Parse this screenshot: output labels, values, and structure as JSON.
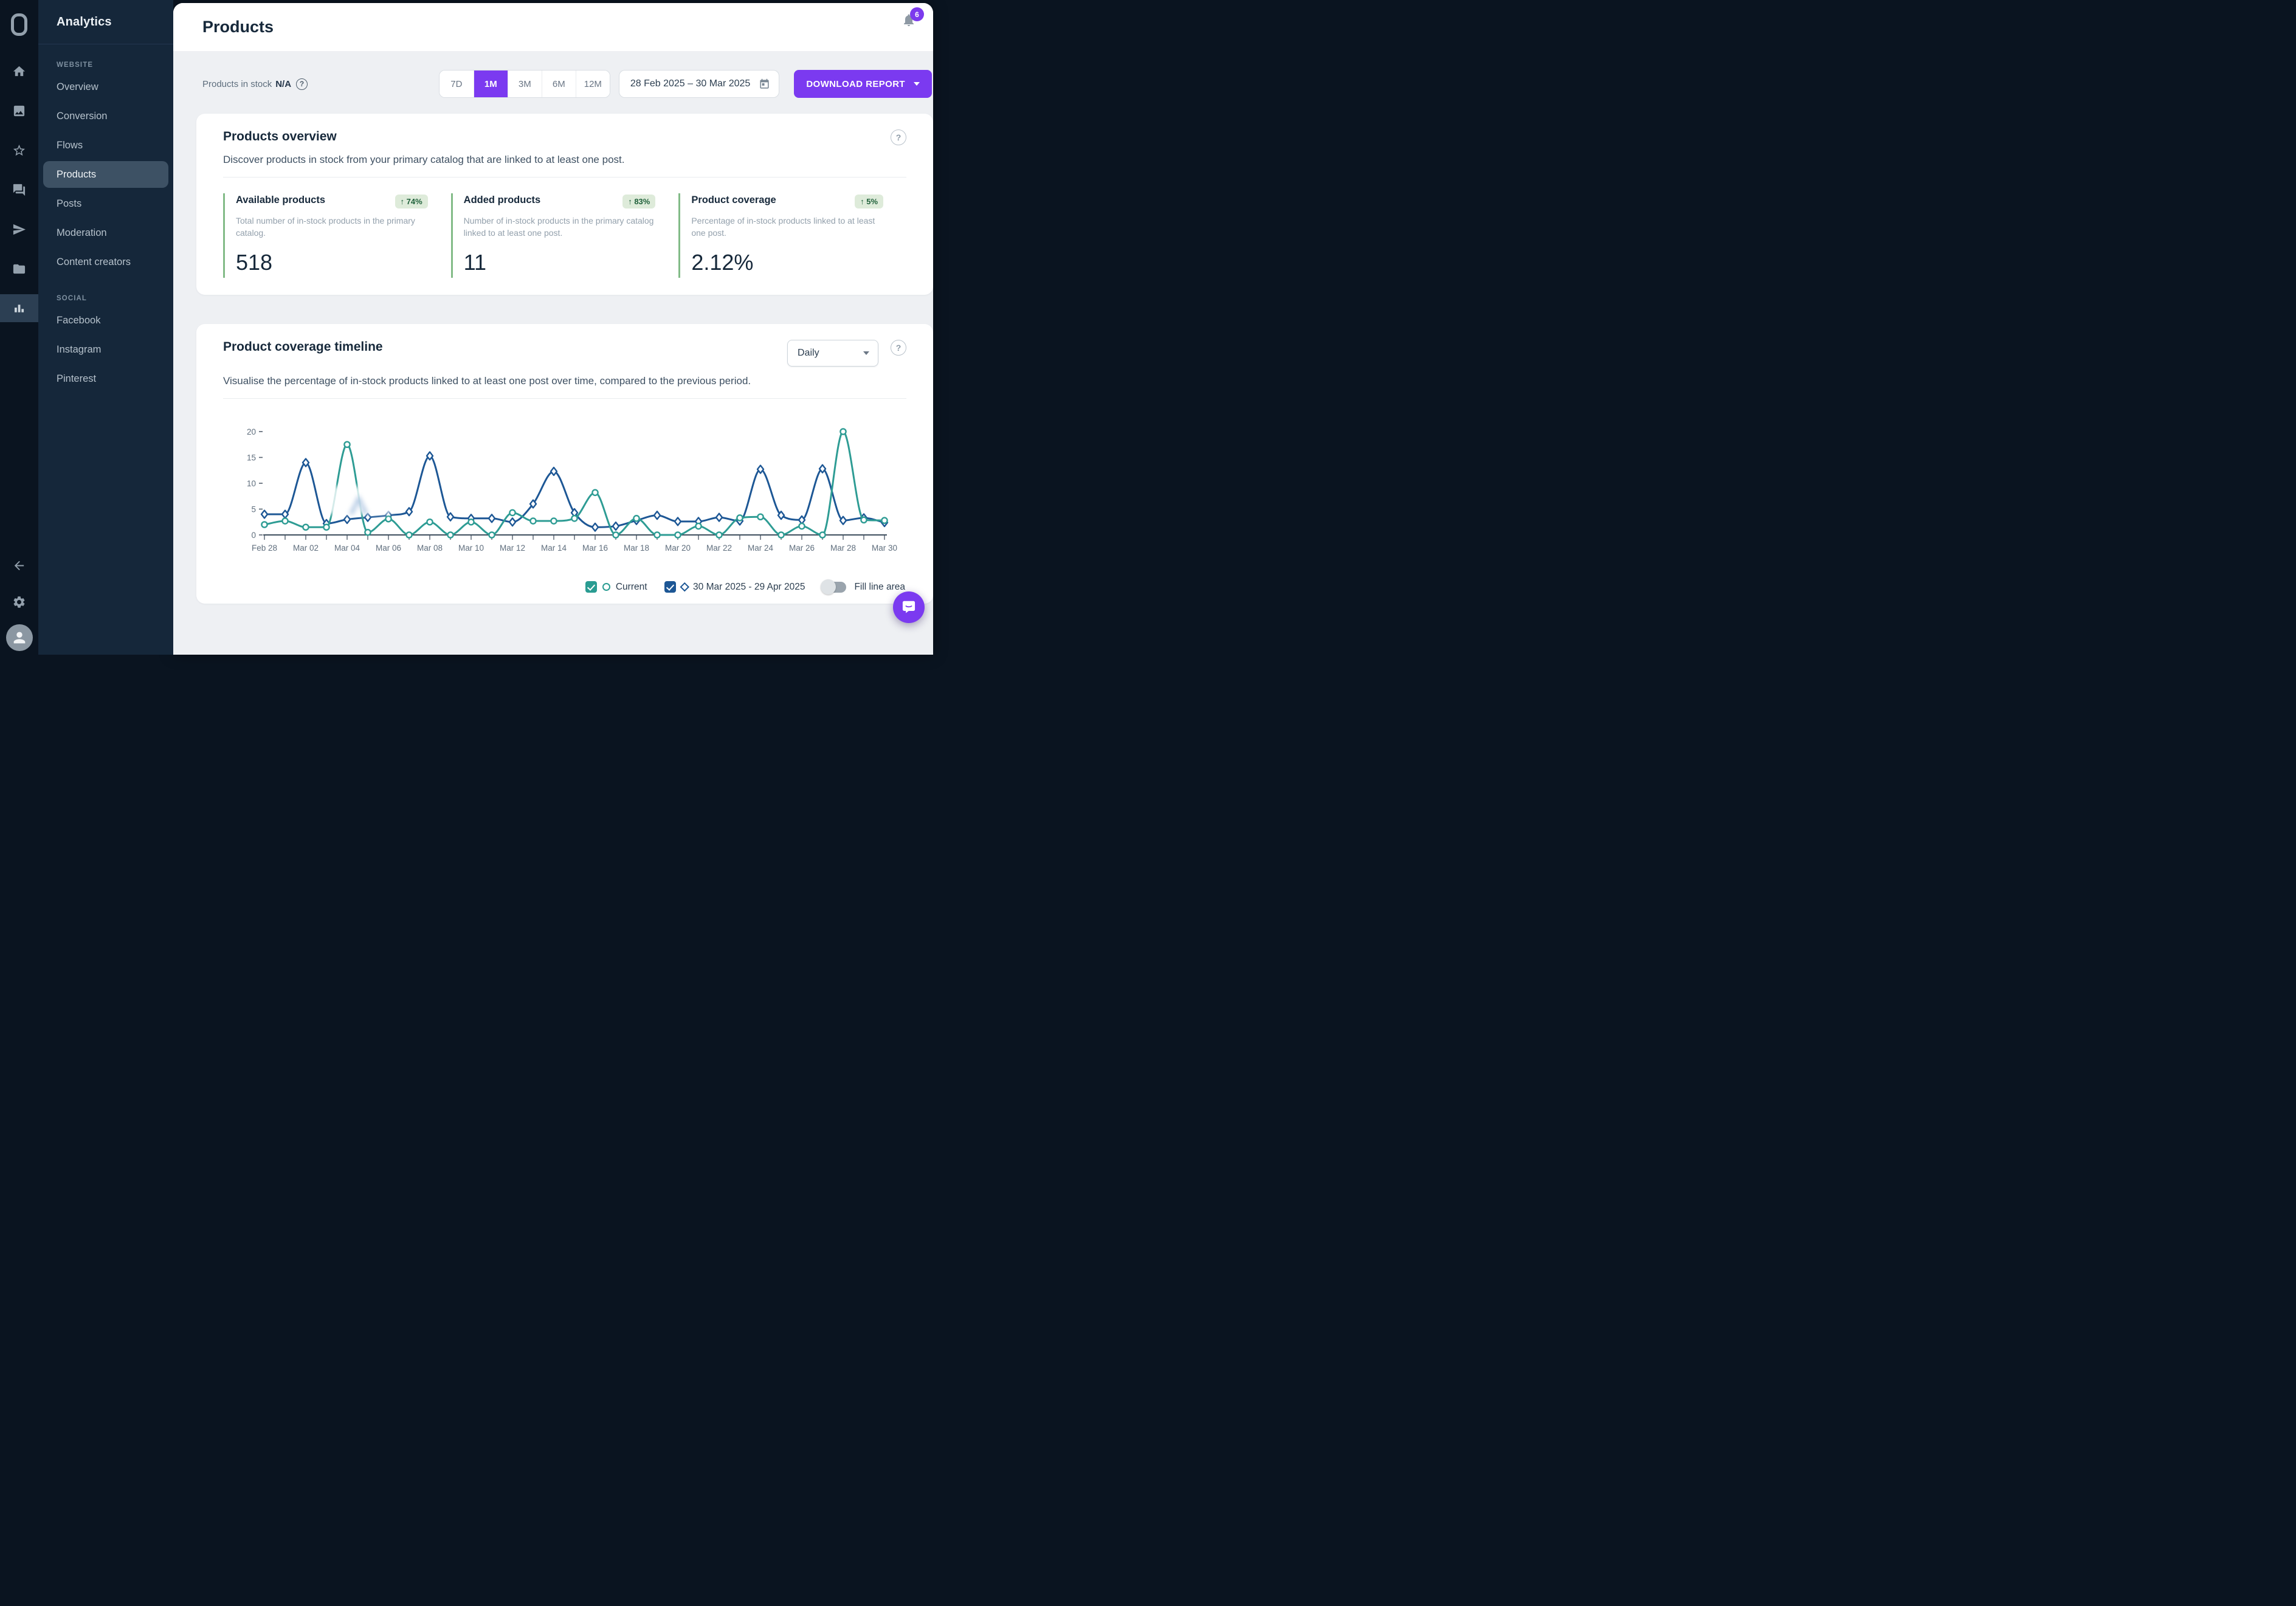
{
  "sidebar": {
    "title": "Analytics",
    "sections": [
      {
        "label": "WEBSITE",
        "items": [
          "Overview",
          "Conversion",
          "Flows",
          "Products",
          "Posts",
          "Moderation",
          "Content creators"
        ],
        "active": "Products"
      },
      {
        "label": "SOCIAL",
        "items": [
          "Facebook",
          "Instagram",
          "Pinterest"
        ]
      }
    ],
    "rail_icons": [
      "logo",
      "home-icon",
      "image-icon",
      "star-icon",
      "chat-icon",
      "send-icon",
      "folder-icon",
      "bar-chart-icon",
      "back-arrow-icon",
      "gear-icon",
      "avatar"
    ]
  },
  "header": {
    "title": "Products",
    "notifications_count": "6"
  },
  "ui": {
    "help_glyph": "?"
  },
  "toolbar": {
    "stock_label": "Products in stock",
    "stock_value": "N/A",
    "ranges": [
      "7D",
      "1M",
      "3M",
      "6M",
      "12M"
    ],
    "active_range": "1M",
    "date_range": "28 Feb 2025 – 30 Mar 2025",
    "download_label": "DOWNLOAD REPORT"
  },
  "overview_card": {
    "title": "Products overview",
    "description": "Discover products in stock from your primary catalog that are linked to at least one post.",
    "metrics": [
      {
        "title": "Available products",
        "badge": "↑ 74%",
        "description": "Total number of in-stock products in the primary catalog.",
        "value": "518"
      },
      {
        "title": "Added products",
        "badge": "↑ 83%",
        "description": "Number of in-stock products in the primary catalog linked to at least one post.",
        "value": "11"
      },
      {
        "title": "Product coverage",
        "badge": "↑ 5%",
        "description": "Percentage of in-stock products linked to at least one post.",
        "value": "2.12%"
      }
    ]
  },
  "timeline_card": {
    "title": "Product coverage timeline",
    "granularity": "Daily",
    "description": "Visualise the percentage of in-stock products linked to at least one post over time, compared to the previous period.",
    "legend": {
      "current_label": "Current",
      "previous_label": "30 Mar 2025 - 29 Apr 2025",
      "fill_label": "Fill line area"
    }
  },
  "chart_data": {
    "type": "line",
    "x": [
      "Feb 28",
      "Mar 01",
      "Mar 02",
      "Mar 03",
      "Mar 04",
      "Mar 05",
      "Mar 06",
      "Mar 07",
      "Mar 08",
      "Mar 09",
      "Mar 10",
      "Mar 11",
      "Mar 12",
      "Mar 13",
      "Mar 14",
      "Mar 15",
      "Mar 16",
      "Mar 17",
      "Mar 18",
      "Mar 19",
      "Mar 20",
      "Mar 21",
      "Mar 22",
      "Mar 23",
      "Mar 24",
      "Mar 25",
      "Mar 26",
      "Mar 27",
      "Mar 28",
      "Mar 29",
      "Mar 30"
    ],
    "x_label_every": 2,
    "ylim": [
      0,
      20
    ],
    "yticks": [
      0,
      5,
      10,
      15,
      20
    ],
    "grid": false,
    "legend_position": "bottom-right",
    "series": [
      {
        "name": "30 Mar 2025 - 29 Apr 2025",
        "color": "#1D5795",
        "marker": "diamond",
        "values": [
          4,
          4,
          14,
          2.2,
          3,
          3.4,
          3.8,
          4.5,
          15.3,
          3.5,
          3.2,
          3.2,
          2.5,
          6,
          12.3,
          4.3,
          1.5,
          1.7,
          2.8,
          3.8,
          2.6,
          2.6,
          3.4,
          2.7,
          12.7,
          3.8,
          2.9,
          12.8,
          2.8,
          3.3,
          2.4
        ]
      },
      {
        "name": "Current",
        "color": "#2E9C94",
        "marker": "circle",
        "values": [
          2,
          2.7,
          1.5,
          1.5,
          17.5,
          0.5,
          3.1,
          0,
          2.5,
          0,
          2.5,
          0,
          4.3,
          2.7,
          2.7,
          3.2,
          8.2,
          0,
          3.2,
          0,
          0,
          1.7,
          0,
          3.3,
          3.5,
          0,
          1.7,
          0,
          20,
          2.9,
          2.8
        ]
      }
    ]
  }
}
